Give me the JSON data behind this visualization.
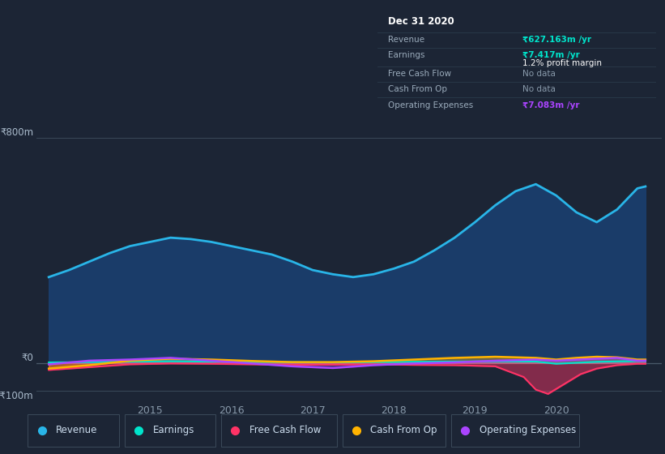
{
  "bg_color": "#1c2535",
  "plot_bg_color": "#1c2535",
  "grid_color": "#2a3a4a",
  "ylabel_800": "₹800m",
  "ylabel_0": "₹0",
  "ylabel_neg100": "-₹100m",
  "ylim": [
    -130,
    870
  ],
  "xlim": [
    2013.6,
    2021.3
  ],
  "x_ticks": [
    2015,
    2016,
    2017,
    2018,
    2019,
    2020
  ],
  "revenue_color": "#29b5e8",
  "revenue_fill": "#1a3f6f",
  "earnings_color": "#00e5cc",
  "fcf_color": "#ff3366",
  "cashfromop_color": "#ffb300",
  "opex_color": "#aa44ff",
  "legend_items": [
    "Revenue",
    "Earnings",
    "Free Cash Flow",
    "Cash From Op",
    "Operating Expenses"
  ],
  "legend_colors": [
    "#29b5e8",
    "#00e5cc",
    "#ff3366",
    "#ffb300",
    "#aa44ff"
  ],
  "info_box": {
    "title": "Dec 31 2020",
    "revenue_label": "Revenue",
    "revenue_val": "₹627.163m /yr",
    "earnings_label": "Earnings",
    "earnings_val": "₹7.417m /yr",
    "profit_margin": "1.2% profit margin",
    "fcf_label": "Free Cash Flow",
    "fcf_val": "No data",
    "cashfromop_label": "Cash From Op",
    "cashfromop_val": "No data",
    "opex_label": "Operating Expenses",
    "opex_val": "₹7.083m /yr",
    "revenue_val_color": "#00e5cc",
    "earnings_val_color": "#00e5cc",
    "profit_margin_color": "white",
    "fcf_val_color": "#8899aa",
    "cashfromop_val_color": "#8899aa",
    "opex_val_color": "#aa44ff"
  },
  "revenue_x": [
    2013.75,
    2014.0,
    2014.25,
    2014.5,
    2014.75,
    2015.0,
    2015.25,
    2015.5,
    2015.75,
    2016.0,
    2016.25,
    2016.5,
    2016.75,
    2017.0,
    2017.25,
    2017.5,
    2017.75,
    2018.0,
    2018.25,
    2018.5,
    2018.75,
    2019.0,
    2019.25,
    2019.5,
    2019.75,
    2020.0,
    2020.25,
    2020.5,
    2020.75,
    2021.0,
    2021.1
  ],
  "revenue_y": [
    305,
    330,
    360,
    390,
    415,
    430,
    445,
    440,
    430,
    415,
    400,
    385,
    360,
    330,
    315,
    305,
    315,
    335,
    360,
    400,
    445,
    500,
    560,
    610,
    635,
    595,
    535,
    500,
    545,
    620,
    627
  ],
  "earnings_x": [
    2013.75,
    2014.25,
    2014.75,
    2015.25,
    2015.75,
    2016.25,
    2016.75,
    2017.25,
    2017.75,
    2018.25,
    2018.75,
    2019.25,
    2019.75,
    2020.0,
    2020.5,
    2021.0,
    2021.1
  ],
  "earnings_y": [
    2,
    3,
    5,
    6,
    5,
    4,
    3,
    2,
    3,
    4,
    5,
    6,
    5,
    -3,
    4,
    7,
    7
  ],
  "fcf_x": [
    2013.75,
    2014.25,
    2014.75,
    2015.25,
    2015.75,
    2016.25,
    2016.75,
    2017.25,
    2017.75,
    2018.25,
    2018.75,
    2019.25,
    2019.6,
    2019.75,
    2019.9,
    2020.1,
    2020.3,
    2020.5,
    2020.75,
    2021.0,
    2021.1
  ],
  "fcf_y": [
    -25,
    -15,
    -5,
    -2,
    -3,
    -5,
    -7,
    -6,
    -5,
    -7,
    -8,
    -12,
    -50,
    -95,
    -110,
    -75,
    -40,
    -20,
    -8,
    -3,
    -3
  ],
  "cashfromop_x": [
    2013.75,
    2014.25,
    2014.75,
    2015.25,
    2015.75,
    2016.25,
    2016.75,
    2017.25,
    2017.75,
    2018.25,
    2018.75,
    2019.25,
    2019.75,
    2020.0,
    2020.25,
    2020.5,
    2020.75,
    2021.0,
    2021.1
  ],
  "cashfromop_y": [
    -20,
    -8,
    8,
    15,
    12,
    7,
    3,
    3,
    6,
    12,
    18,
    22,
    18,
    12,
    18,
    22,
    20,
    12,
    12
  ],
  "opex_x": [
    2013.75,
    2014.25,
    2014.75,
    2015.25,
    2015.75,
    2016.25,
    2016.75,
    2017.25,
    2017.75,
    2018.25,
    2018.75,
    2019.25,
    2019.75,
    2020.0,
    2020.5,
    2020.75,
    2021.0,
    2021.1
  ],
  "opex_y": [
    -5,
    8,
    12,
    18,
    8,
    -2,
    -12,
    -18,
    -8,
    -2,
    2,
    8,
    12,
    8,
    15,
    18,
    8,
    8
  ]
}
